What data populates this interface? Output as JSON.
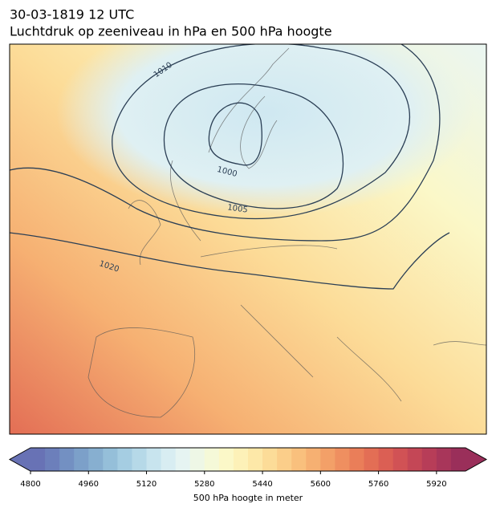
{
  "header": {
    "title": "30-03-1819 12 UTC",
    "subtitle": "Luchtdruk op zeeniveau in hPa en 500 hPa hoogte"
  },
  "contour_labels": [
    "1010",
    "1000",
    "1005",
    "1020"
  ],
  "colorbar": {
    "label": "500 hPa hoogte in meter",
    "lim": [
      4800,
      6000
    ],
    "ticks": [
      4800,
      4960,
      5120,
      5280,
      5440,
      5600,
      5760,
      5920
    ],
    "colors": [
      "#6872b5",
      "#6c7fbb",
      "#7390c2",
      "#7ca0c9",
      "#87afd0",
      "#95bfd9",
      "#a5cde2",
      "#b6d9e8",
      "#c8e4ee",
      "#d8edf2",
      "#e6f4f2",
      "#eef7e6",
      "#f5f9d8",
      "#fbf8c8",
      "#fdf1b8",
      "#fde8a8",
      "#fcdc98",
      "#fbce8a",
      "#f9c07d",
      "#f6b072",
      "#f3a068",
      "#ef8f60",
      "#ea7e59",
      "#e36e55",
      "#db5f54",
      "#d15255",
      "#c44756",
      "#b73d58",
      "#a8365a",
      "#9a2f5a"
    ]
  }
}
